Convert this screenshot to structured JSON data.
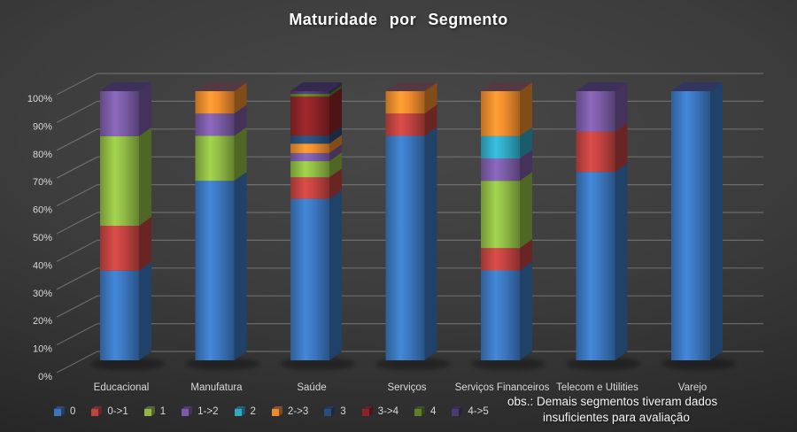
{
  "title": "Maturidade por Segmento",
  "note": {
    "line1": "obs.: Demais segmentos tiveram dados",
    "line2": "insuficientes para avaliação"
  },
  "colors": {
    "background_center": "#454545",
    "background_edge": "#1d1d1d",
    "gridline": "#9b9b9b",
    "axis_text": "#d9d9d9",
    "title_text": "#ffffff"
  },
  "chart_data": {
    "type": "bar",
    "subtype": "100%-stacked-column-3d",
    "title": "Maturidade por Segmento",
    "xlabel": "",
    "ylabel": "",
    "ylim": [
      0,
      100
    ],
    "grid": true,
    "legend_position": "bottom-left",
    "y_ticks": [
      "0%",
      "10%",
      "20%",
      "30%",
      "40%",
      "50%",
      "60%",
      "70%",
      "80%",
      "90%",
      "100%"
    ],
    "categories": [
      "Educacional",
      "Manufatura",
      "Saúde",
      "Serviços",
      "Serviços Financeiros",
      "Telecom e Utilities",
      "Varejo"
    ],
    "series": [
      {
        "name": "0",
        "color": "#3b76bd",
        "values": [
          33.3,
          66.7,
          60.0,
          83.4,
          33.4,
          70.0,
          100.0
        ]
      },
      {
        "name": "0->1",
        "color": "#bf4340",
        "values": [
          16.7,
          0,
          8.0,
          8.3,
          8.3,
          15.0,
          0
        ]
      },
      {
        "name": "1",
        "color": "#8fb944",
        "values": [
          33.3,
          16.7,
          6.0,
          0,
          25.0,
          0,
          0
        ]
      },
      {
        "name": "1->2",
        "color": "#7b5ba5",
        "values": [
          16.7,
          8.3,
          3.0,
          0,
          8.3,
          15.0,
          0
        ]
      },
      {
        "name": "2",
        "color": "#31a8c4",
        "values": [
          0,
          0,
          0,
          0,
          8.3,
          0,
          0
        ]
      },
      {
        "name": "2->3",
        "color": "#ec8b2d",
        "values": [
          0,
          8.3,
          3.5,
          8.3,
          16.7,
          0,
          0
        ]
      },
      {
        "name": "3",
        "color": "#2a4d79",
        "values": [
          0,
          0,
          3.0,
          0,
          0,
          0,
          0
        ]
      },
      {
        "name": "3->4",
        "color": "#8b2427",
        "values": [
          0,
          0,
          14.5,
          0,
          0,
          0,
          0
        ]
      },
      {
        "name": "4",
        "color": "#5f8026",
        "values": [
          0,
          0,
          1.0,
          0,
          0,
          0,
          0
        ]
      },
      {
        "name": "4->5",
        "color": "#4e3a70",
        "values": [
          0,
          0,
          1.0,
          0,
          0,
          0,
          0
        ]
      }
    ],
    "annotation": "obs.: Demais segmentos tiveram dados insuficientes para avaliação"
  }
}
